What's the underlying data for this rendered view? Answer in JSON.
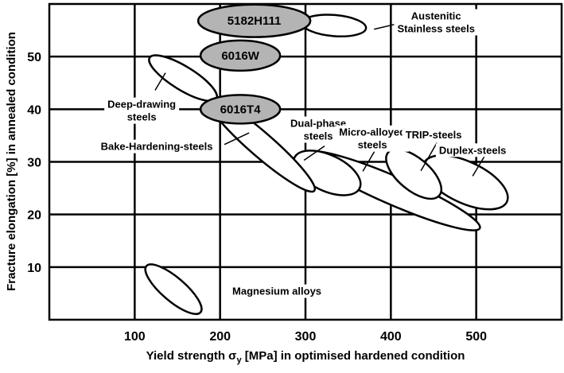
{
  "chart_data": {
    "type": "scatter",
    "title": "",
    "xlabel": "Yield strength σy [MPa] in optimised hardened condition",
    "xlabel_parts": {
      "before": "Yield strength σ",
      "sub": "y",
      "after": " [MPa] in optimised hardened condition"
    },
    "ylabel": "Fracture elongation [%] in annealed condition",
    "xlim": [
      0,
      600
    ],
    "ylim": [
      0,
      60
    ],
    "xticks": [
      100,
      200,
      300,
      400,
      500
    ],
    "yticks": [
      10,
      20,
      30,
      40,
      50
    ],
    "grid": true,
    "colors": {
      "aluminium_fill": "#b4b4b4",
      "steel_fill": "#ffffff",
      "line": "#000000"
    },
    "regions": [
      {
        "name": "Micro-alloyed steels",
        "center": [
          403.5,
          24.5
        ],
        "major_end": [
          504.2,
          17.4
        ],
        "minor_ratio": 0.15,
        "fill": "steel"
      },
      {
        "name": "Duplex-steels",
        "center": [
          487.4,
          26.1
        ],
        "major_end": [
          535.9,
          22.4
        ],
        "minor_ratio": 0.45,
        "fill": "steel"
      },
      {
        "name": "TRIP-steels",
        "center": [
          426.8,
          27.7
        ],
        "major_end": [
          456.7,
          23.6
        ],
        "minor_ratio": 0.48,
        "fill": "steel"
      },
      {
        "name": "Dual-phase steels",
        "center": [
          325.3,
          27.9
        ],
        "major_end": [
          363.5,
          25.0
        ],
        "minor_ratio": 0.5,
        "fill": "steel"
      },
      {
        "name": "Bake-Hardening-steels",
        "center": [
          247.9,
          33.3
        ],
        "major_end": [
          310.3,
          24.5
        ],
        "minor_ratio": 0.17,
        "fill": "steel"
      },
      {
        "name": "Deep-drawing steels",
        "center": [
          156.6,
          45.9
        ],
        "major_end": [
          195.7,
          42.0
        ],
        "minor_ratio": 0.3,
        "fill": "steel"
      },
      {
        "name": "Magnesium alloys",
        "center": [
          145.4,
          5.8
        ],
        "major_end": [
          177.1,
          1.4
        ],
        "minor_ratio": 0.33,
        "fill": "steel"
      },
      {
        "name": "Austenitic Stainless steels",
        "center": [
          333.6,
          55.9
        ],
        "major_end": [
          370.9,
          55.4
        ],
        "minor_ratio": 0.33,
        "fill": "steel"
      },
      {
        "name": "5182H111",
        "center": [
          240,
          56.8
        ],
        "major_end": [
          305.7,
          56.8
        ],
        "minor_ratio": 0.29,
        "fill": "aluminium",
        "inner_label": "5182H111"
      },
      {
        "name": "6016W",
        "center": [
          223.7,
          50.2
        ],
        "major_end": [
          270.3,
          50.2
        ],
        "minor_ratio": 0.38,
        "fill": "aluminium",
        "inner_label": "6016W"
      },
      {
        "name": "6016T4",
        "center": [
          223.7,
          40
        ],
        "major_end": [
          270.3,
          40
        ],
        "minor_ratio": 0.36,
        "fill": "aluminium",
        "inner_label": "6016T4"
      }
    ],
    "annotations": [
      {
        "lines": [
          "Austenitic",
          "Stainless steels"
        ],
        "at": [
          453,
          56.6
        ],
        "leader": [
          [
            380.3,
            55.2
          ],
          [
            412,
            56.4
          ]
        ]
      },
      {
        "lines": [
          "Deep-drawing",
          "steels"
        ],
        "at": [
          108.2,
          39.8
        ],
        "leader": [
          [
            123.9,
            43.6
          ],
          [
            136,
            46.9
          ]
        ]
      },
      {
        "lines": [
          "Bake-Hardening-steels"
        ],
        "at": [
          125.8,
          33
        ],
        "leader": [
          [
            205,
            33.3
          ],
          [
            234,
            35.5
          ]
        ]
      },
      {
        "lines": [
          "Dual-phase",
          "steels"
        ],
        "at": [
          315,
          36.2
        ],
        "leader": [
          [
            298.3,
            30.3
          ],
          [
            322.4,
            33.0
          ]
        ]
      },
      {
        "lines": [
          "Micro-alloyed",
          "steels"
        ],
        "at": [
          378.4,
          34.5
        ],
        "leader": [
          [
            367.2,
            28.2
          ],
          [
            381.2,
            32.1
          ]
        ]
      },
      {
        "lines": [
          "TRIP-steels"
        ],
        "at": [
          450.1,
          35.2
        ],
        "leader": [
          [
            435.2,
            28.3
          ],
          [
            453.9,
            33.6
          ]
        ]
      },
      {
        "lines": [
          "Duplex-steels"
        ],
        "at": [
          495.8,
          32.3
        ],
        "leader": [
          [
            495.8,
            27.3
          ],
          [
            509.8,
            31.1
          ]
        ]
      },
      {
        "lines": [
          "Magnesium alloys"
        ],
        "at": [
          266.5,
          5.5
        ],
        "leader": null
      }
    ]
  }
}
